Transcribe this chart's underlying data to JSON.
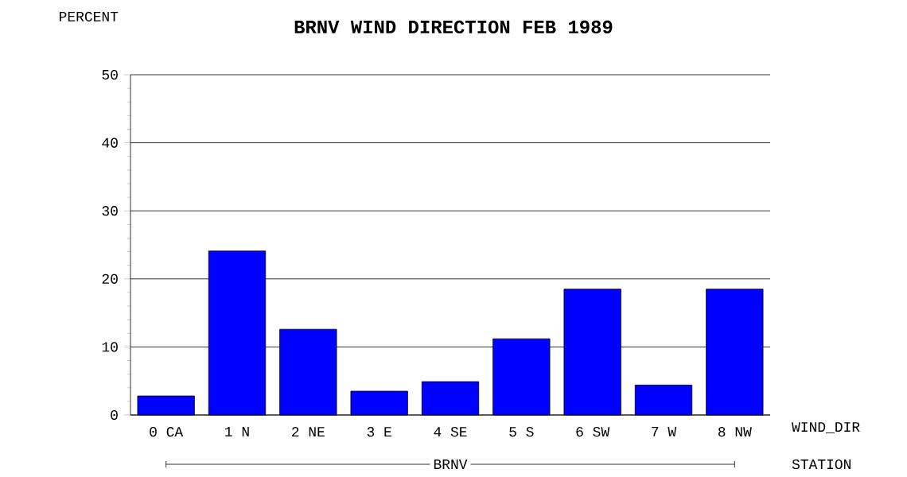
{
  "chart_data": {
    "type": "bar",
    "title": "BRNV WIND DIRECTION FEB 1989",
    "xlabel": "WIND_DIR",
    "ylabel": "PERCENT",
    "categories": [
      "0 CA",
      "1 N",
      "2 NE",
      "3 E",
      "4 SE",
      "5 S",
      "6 SW",
      "7 W",
      "8 NW"
    ],
    "values": [
      2.8,
      24.1,
      12.6,
      3.5,
      4.9,
      11.2,
      18.5,
      4.4,
      18.5
    ],
    "color": "#0000ff",
    "ylim": [
      0,
      50
    ],
    "yticks": [
      0,
      10,
      20,
      30,
      40,
      50
    ],
    "grid": "y",
    "annotations": [
      "BRNV",
      "STATION"
    ]
  }
}
